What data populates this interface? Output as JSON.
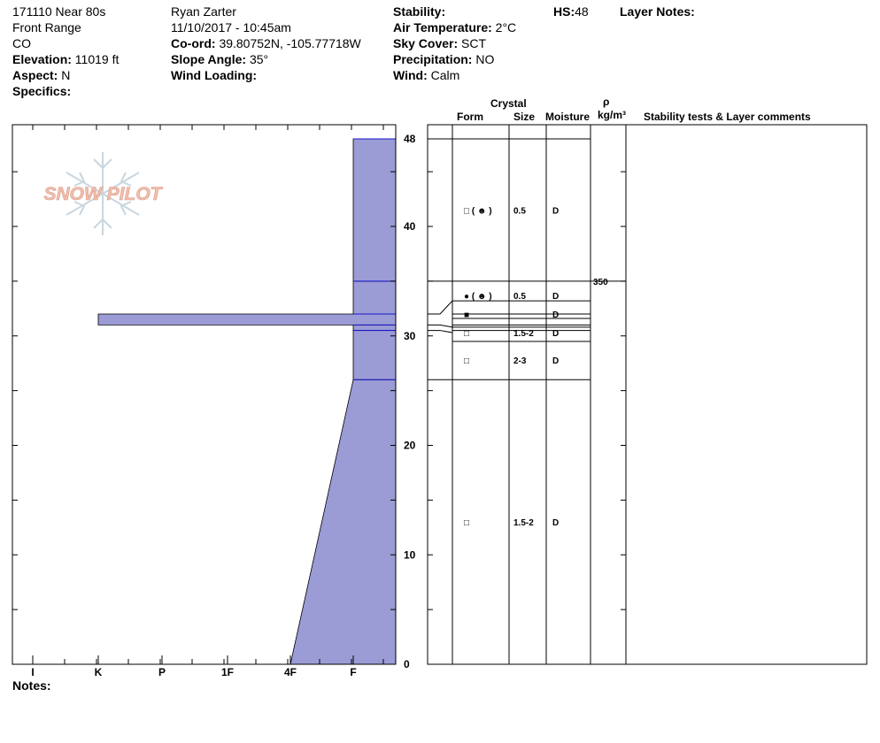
{
  "header": {
    "site_id": "171110 Near 80s",
    "range": "Front Range",
    "state": "CO",
    "elevation_label": "Elevation:",
    "elevation_value": "11019 ft",
    "aspect_label": "Aspect:",
    "aspect_value": "N",
    "specifics_label": "Specifics:",
    "observer": "Ryan Zarter",
    "datetime": "11/10/2017 - 10:45am",
    "coord_label": "Co-ord:",
    "coord_value": "39.80752N, -105.77718W",
    "slope_label": "Slope Angle:",
    "slope_value": "35°",
    "wind_loading_label": "Wind Loading:",
    "stability_label": "Stability:",
    "air_temp_label": "Air Temperature:",
    "air_temp_value": "2°C",
    "sky_cover_label": "Sky Cover:",
    "sky_cover_value": "SCT",
    "precip_label": "Precipitation:",
    "precip_value": "NO",
    "wind_label": "Wind:",
    "wind_value": "Calm",
    "hs_label": "HS:",
    "hs_value": "48",
    "layer_notes_label": "Layer Notes:"
  },
  "table_headers": {
    "crystal": "Crystal",
    "form": "Form",
    "size": "Size",
    "moisture": "Moisture",
    "rho": "ρ",
    "density_unit": "kg/m³",
    "comments": "Stability tests & Layer comments"
  },
  "footer": {
    "notes_label": "Notes:"
  },
  "logo": {
    "text": "SNOW PILOT"
  },
  "colors": {
    "fill": "#9b9bd6",
    "boundary": "#1a1acc",
    "logo": "#f2bfae"
  },
  "chart_data": {
    "type": "snow_profile",
    "hs": 48,
    "y_axis": {
      "range": [
        0,
        48
      ],
      "ticks": [
        0,
        10,
        20,
        30,
        40,
        48
      ]
    },
    "hardness_axis": {
      "labels": [
        "I",
        "K",
        "P",
        "1F",
        "4F",
        "F"
      ]
    },
    "hardness_profile": [
      {
        "from": 0,
        "to": 26,
        "hardness_bottom": "4F",
        "hardness_top": "F"
      },
      {
        "from": 26,
        "to": 30.5,
        "hardness": "F"
      },
      {
        "from": 30.5,
        "to": 31,
        "hardness": "F"
      },
      {
        "from": 31,
        "to": 32,
        "hardness": "K"
      },
      {
        "from": 32,
        "to": 35,
        "hardness": "F"
      },
      {
        "from": 35,
        "to": 48,
        "hardness": "F"
      }
    ],
    "boundaries": [
      26,
      30.5,
      31,
      32,
      35,
      48
    ],
    "layers": [
      {
        "y": 13,
        "form": "□",
        "size": "1.5-2",
        "moisture": "D"
      },
      {
        "y": 27.8,
        "form": "□",
        "size": "2-3",
        "moisture": "D"
      },
      {
        "y": 30.3,
        "form": "□",
        "size": "1.5-2",
        "moisture": "D"
      },
      {
        "y": 32,
        "form": "■",
        "size": "",
        "moisture": "D"
      },
      {
        "y": 33.7,
        "form": "● ( ☻ )",
        "size": "0.5",
        "moisture": "D"
      },
      {
        "y": 41.5,
        "form": "□ ( ☻ )",
        "size": "0.5",
        "moisture": "D"
      }
    ],
    "density": [
      {
        "y": 34.5,
        "value": "350"
      }
    ]
  }
}
